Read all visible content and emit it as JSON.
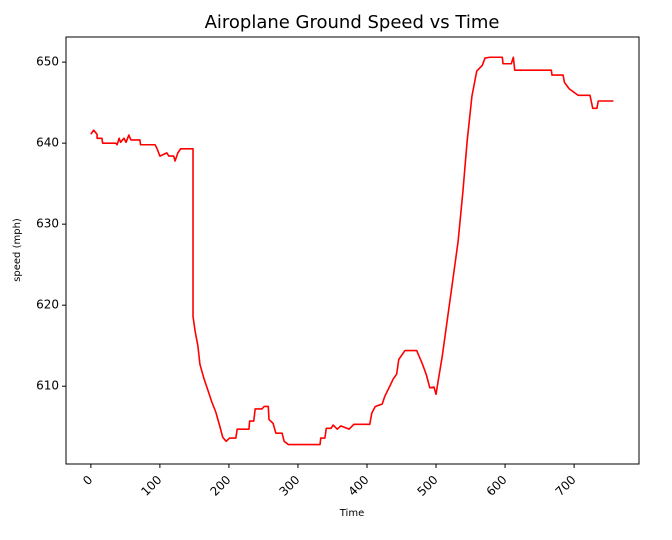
{
  "chart_data": {
    "type": "line",
    "title": "Airoplane Ground Speed vs Time",
    "x_label": "Time",
    "y_label": "speed (mph)",
    "x": [
      0,
      4,
      9,
      9,
      16,
      17,
      36,
      38,
      41,
      43,
      48,
      51,
      55,
      58,
      71,
      72,
      93,
      96,
      100,
      110,
      113,
      120,
      122,
      126,
      130,
      148,
      148,
      151,
      155,
      158,
      164,
      170,
      175,
      181,
      187,
      191,
      196,
      201,
      210,
      212,
      229,
      230,
      236,
      238,
      248,
      251,
      257,
      258,
      264,
      268,
      277,
      280,
      286,
      332,
      333,
      339,
      341,
      348,
      351,
      357,
      362,
      374,
      381,
      404,
      407,
      412,
      422,
      426,
      433,
      438,
      443,
      446,
      455,
      472,
      475,
      480,
      486,
      491,
      497,
      500,
      503,
      509,
      516,
      523,
      532,
      539,
      545,
      552,
      559,
      567,
      571,
      578,
      596,
      597,
      609,
      612,
      614,
      667,
      668,
      684,
      686,
      693,
      706,
      723,
      727,
      733,
      735,
      757
    ],
    "y": [
      641.1,
      641.6,
      641.1,
      640.6,
      640.6,
      640,
      640,
      639.8,
      640.6,
      640.1,
      640.6,
      640.1,
      641,
      640.4,
      640.4,
      639.8,
      639.8,
      639.3,
      638.4,
      638.8,
      638.4,
      638.4,
      637.8,
      638.8,
      639.3,
      639.3,
      618.6,
      616.8,
      615,
      612.7,
      610.9,
      609.4,
      608.1,
      606.8,
      605,
      603.7,
      603.2,
      603.6,
      603.6,
      604.7,
      604.7,
      605.7,
      605.7,
      607.2,
      607.2,
      607.5,
      607.5,
      605.9,
      605.4,
      604.2,
      604.2,
      603.2,
      602.8,
      602.8,
      603.6,
      603.6,
      604.8,
      604.8,
      605.2,
      604.7,
      605.1,
      604.7,
      605.3,
      605.3,
      606.7,
      607.5,
      607.8,
      608.8,
      610,
      610.9,
      611.5,
      613.3,
      614.4,
      614.4,
      613.8,
      612.8,
      611.4,
      609.8,
      609.9,
      609,
      610.6,
      613.7,
      618,
      622.3,
      627.9,
      634.1,
      640.2,
      645.8,
      648.9,
      649.6,
      650.5,
      650.6,
      650.6,
      649.8,
      649.8,
      650.6,
      649,
      649,
      648.4,
      648.4,
      647.5,
      646.7,
      645.9,
      645.9,
      644.3,
      644.3,
      645.2,
      645.2
    ],
    "color": "#ff0000",
    "xlim": [
      -36,
      794
    ],
    "ylim": [
      600.4,
      653.1
    ],
    "xticks": [
      0,
      100,
      200,
      300,
      400,
      500,
      600,
      700
    ],
    "yticks": [
      610,
      620,
      630,
      640,
      650
    ]
  }
}
